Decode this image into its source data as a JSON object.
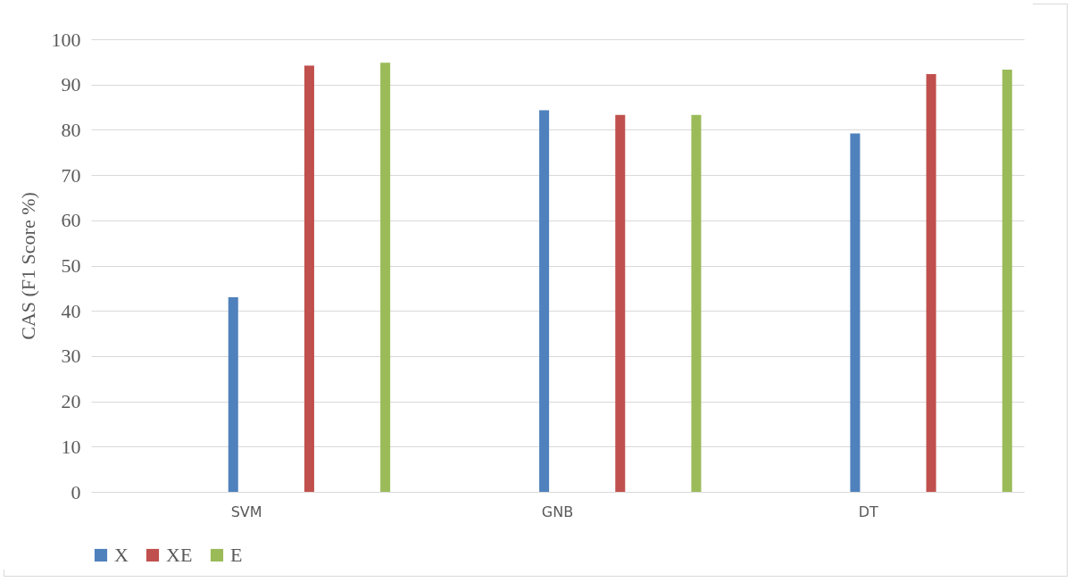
{
  "chart_data": {
    "type": "bar",
    "ylabel": "CAS (F1 Score  %)",
    "categories": [
      "SVM",
      "GNB",
      "DT"
    ],
    "series": [
      {
        "name": "X",
        "color": "#4f81bd",
        "values": [
          43.0,
          84.3,
          79.2
        ]
      },
      {
        "name": "XE",
        "color": "#c0504d",
        "values": [
          94.2,
          83.3,
          92.3
        ]
      },
      {
        "name": "E",
        "color": "#9bbb59",
        "values": [
          94.8,
          83.3,
          93.3
        ]
      }
    ],
    "ylim": [
      0,
      100
    ],
    "yticks": [
      0,
      10,
      20,
      30,
      40,
      50,
      60,
      70,
      80,
      90,
      100
    ],
    "grid": "y",
    "legend": "bottom"
  }
}
